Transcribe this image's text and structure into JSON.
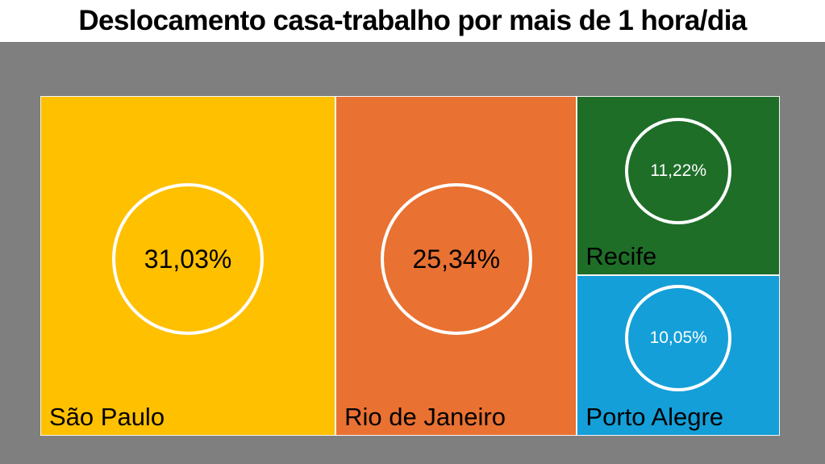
{
  "page": {
    "canvas_background": "#7F7F7F",
    "title_bar_background": "#FFFFFF"
  },
  "chart_data": {
    "type": "treemap",
    "title": "Deslocamento casa-trabalho por mais de 1 hora/dia",
    "categories": [
      "São Paulo",
      "Rio de Janeiro",
      "Recife",
      "Porto Alegre"
    ],
    "values": [
      31.03,
      25.34,
      11.22,
      10.05
    ],
    "value_labels": [
      "31,03%",
      "25,34%",
      "11,22%",
      "10,05%"
    ],
    "unit": "%",
    "colors": [
      "#FFC000",
      "#E97132",
      "#1E6E28",
      "#149FD8"
    ],
    "value_label_colors": [
      "#000000",
      "#000000",
      "#FFFFFF",
      "#FFFFFF"
    ],
    "category_label_color": "#000000",
    "circle_outline_color": "#FFFFFF",
    "legend": "none",
    "grid": "off",
    "layout_hint": "single-row treemap: São Paulo and Rio de Janeiro are full-height tiles on the left; right column stacks Recife above Porto Alegre; tile areas proportional to values; each tile has a centered outlined circle with the value and a city label at bottom-left"
  }
}
